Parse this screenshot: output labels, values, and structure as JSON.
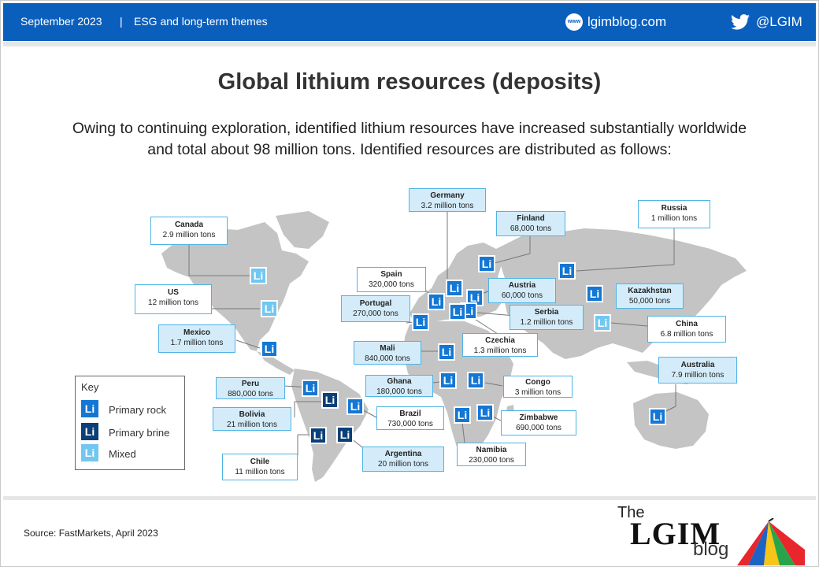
{
  "header": {
    "date": "September 2023",
    "separator": "|",
    "theme": "ESG and long-term themes",
    "www_badge": "www",
    "website": "lgimblog.com",
    "twitter_handle": "@LGIM",
    "accent_color": "#0a5fbd"
  },
  "title": "Global lithium resources (deposits)",
  "description_line1": "Owing to continuing exploration, identified lithium resources have increased substantially worldwide",
  "description_line2": "and total about 98 million tons. Identified resources are distributed as follows:",
  "map": {
    "symbol_text": "Li",
    "countries": [
      {
        "name": "Canada",
        "value": "2.9 million tons",
        "type": "mixed"
      },
      {
        "name": "US",
        "value": "12 million tons",
        "type": "mixed"
      },
      {
        "name": "Mexico",
        "value": "1.7 million tons",
        "type": "rock"
      },
      {
        "name": "Germany",
        "value": "3.2 million tons",
        "type": "rock"
      },
      {
        "name": "Finland",
        "value": "68,000 tons",
        "type": "rock"
      },
      {
        "name": "Russia",
        "value": "1 million tons",
        "type": "rock"
      },
      {
        "name": "Spain",
        "value": "320,000 tons",
        "type": "rock"
      },
      {
        "name": "Austria",
        "value": "60,000 tons",
        "type": "rock"
      },
      {
        "name": "Kazakhstan",
        "value": "50,000 tons",
        "type": "rock"
      },
      {
        "name": "Portugal",
        "value": "270,000 tons",
        "type": "rock"
      },
      {
        "name": "Serbia",
        "value": "1.2 million tons",
        "type": "rock"
      },
      {
        "name": "China",
        "value": "6.8 million tons",
        "type": "mixed"
      },
      {
        "name": "Czechia",
        "value": "1.3 million tons",
        "type": "rock"
      },
      {
        "name": "Mali",
        "value": "840,000 tons",
        "type": "rock"
      },
      {
        "name": "Australia",
        "value": "7.9 million tons",
        "type": "rock"
      },
      {
        "name": "Peru",
        "value": "880,000 tons",
        "type": "rock"
      },
      {
        "name": "Ghana",
        "value": "180,000 tons",
        "type": "rock"
      },
      {
        "name": "Congo",
        "value": "3 million tons",
        "type": "rock"
      },
      {
        "name": "Bolivia",
        "value": "21 million tons",
        "type": "brine"
      },
      {
        "name": "Brazil",
        "value": "730,000 tons",
        "type": "rock"
      },
      {
        "name": "Zimbabwe",
        "value": "690,000 tons",
        "type": "rock"
      },
      {
        "name": "Chile",
        "value": "11 million tons",
        "type": "brine"
      },
      {
        "name": "Argentina",
        "value": "20 million tons",
        "type": "brine"
      },
      {
        "name": "Namibia",
        "value": "230,000 tons",
        "type": "rock"
      }
    ],
    "colors": {
      "rock": "#1477d4",
      "brine": "#0b3f78",
      "mixed": "#72c7f2",
      "land": "#c4c4c4",
      "label_border": "#4fb3e6"
    }
  },
  "key": {
    "title": "Key",
    "items": [
      {
        "label": "Primary rock",
        "type": "rock"
      },
      {
        "label": "Primary brine",
        "type": "brine"
      },
      {
        "label": "Mixed",
        "type": "mixed"
      }
    ]
  },
  "footer": {
    "source": "Source: FastMarkets, April 2023",
    "logo_the": "The",
    "logo_lgim": "LGIM",
    "logo_blog": "blog"
  }
}
